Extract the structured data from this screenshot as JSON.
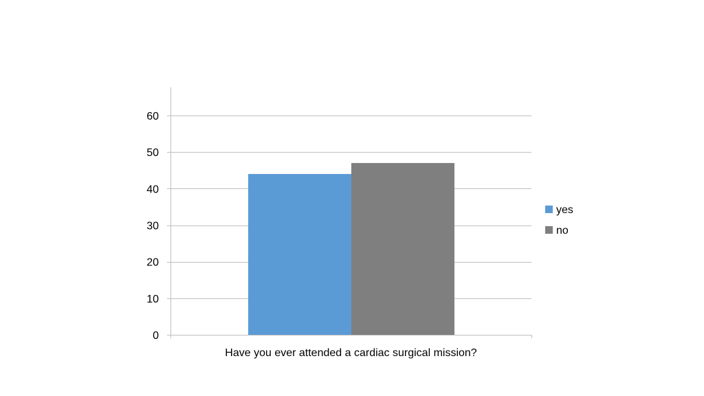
{
  "chart_data": {
    "type": "bar",
    "categories": [
      "Have you ever attended a cardiac surgical mission?"
    ],
    "series": [
      {
        "name": "yes",
        "values": [
          44
        ],
        "color": "#5b9bd5"
      },
      {
        "name": "no",
        "values": [
          47
        ],
        "color": "#7f7f7f"
      }
    ],
    "ylim": [
      0,
      60
    ],
    "yticks": [
      0,
      10,
      20,
      30,
      40,
      50,
      60
    ],
    "grid": true,
    "legend": "right",
    "gridline_color": "#bfbfbf",
    "axis_color": "#bfbfbf"
  }
}
